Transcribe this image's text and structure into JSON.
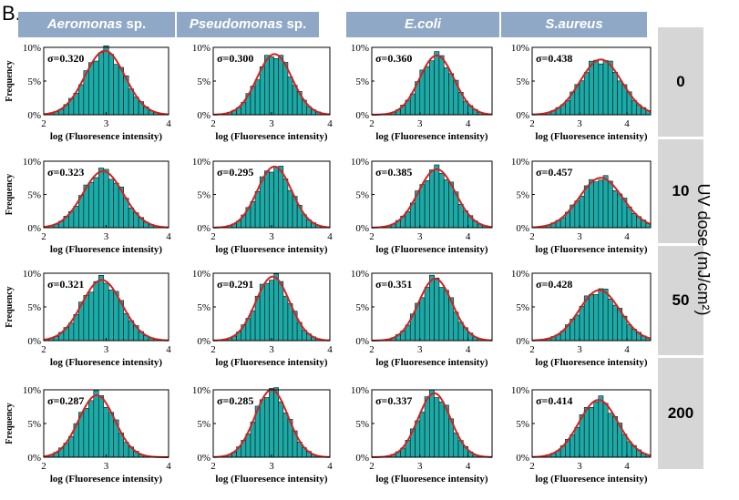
{
  "panel_label": "B.",
  "columns": [
    {
      "name": "Aeromonas",
      "suffix": " sp.",
      "italic": true
    },
    {
      "name": "Pseudomonas",
      "suffix": " sp.",
      "italic": true
    },
    {
      "name": "E.coli",
      "suffix": "",
      "italic": true
    },
    {
      "name": "S.aureus",
      "suffix": "",
      "italic": true
    }
  ],
  "rows": [
    "0",
    "10",
    "50",
    "200"
  ],
  "side_label": "UV dose (mJ/cm²)",
  "colors": {
    "bar": "#1aaba8",
    "fit": "#d42020",
    "header": "#8fa8c5",
    "row_box": "#d6d6d6"
  },
  "chart_data": {
    "type": "histogram-grid",
    "xlabel": "log (Fluoresence intensity)",
    "ylabel": "Frequency",
    "ylim": [
      0,
      10
    ],
    "yticks": [
      "0%",
      "5%",
      "10%"
    ],
    "xlims": [
      [
        2,
        4
      ],
      [
        2,
        4
      ],
      [
        2,
        4.5
      ],
      [
        2,
        4.5
      ]
    ],
    "xticks": [
      [
        "2",
        "3",
        "4"
      ],
      [
        "2",
        "3",
        "4"
      ],
      [
        "2",
        "3",
        "4"
      ],
      [
        "2",
        "3",
        "4"
      ]
    ],
    "means": [
      [
        2.98,
        3.05,
        3.35,
        3.45
      ],
      [
        2.95,
        3.05,
        3.35,
        3.45
      ],
      [
        2.93,
        3.02,
        3.32,
        3.42
      ],
      [
        2.85,
        3.0,
        3.3,
        3.4
      ]
    ],
    "peaks": [
      [
        9.5,
        9.0,
        8.8,
        8.2
      ],
      [
        8.5,
        9.2,
        8.8,
        7.5
      ],
      [
        9.0,
        9.5,
        9.2,
        7.5
      ],
      [
        9.2,
        10.0,
        9.5,
        8.5
      ]
    ],
    "sigmas": [
      [
        "σ=0.320",
        "σ=0.300",
        "σ=0.360",
        "σ=0.438"
      ],
      [
        "σ=0.323",
        "σ=0.295",
        "σ=0.385",
        "σ=0.457"
      ],
      [
        "σ=0.321",
        "σ=0.291",
        "σ=0.351",
        "σ=0.428"
      ],
      [
        "σ=0.287",
        "σ=0.285",
        "σ=0.337",
        "σ=0.414"
      ]
    ],
    "sigma_values": [
      [
        0.32,
        0.3,
        0.36,
        0.438
      ],
      [
        0.323,
        0.295,
        0.385,
        0.457
      ],
      [
        0.321,
        0.291,
        0.351,
        0.428
      ],
      [
        0.287,
        0.285,
        0.337,
        0.414
      ]
    ]
  }
}
